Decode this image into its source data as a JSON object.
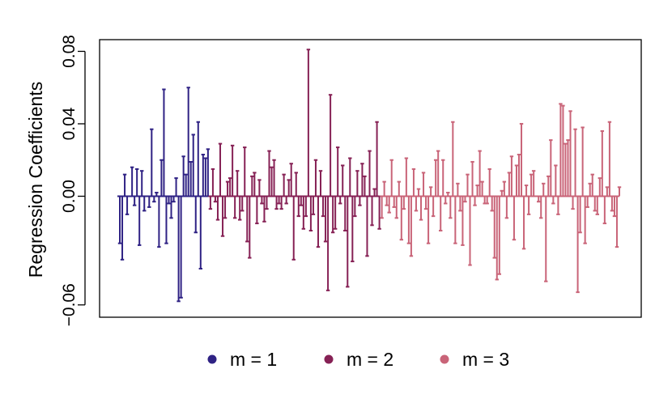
{
  "chart_data": {
    "type": "bar",
    "style": "lollipop-spikes",
    "title": "",
    "xlabel": "",
    "ylabel": "Regression Coefficients",
    "ylim": [
      -0.062,
      0.088
    ],
    "yticks": [
      -0.06,
      0.0,
      0.04,
      0.08
    ],
    "ytick_labels": [
      "−0.06",
      "0.00",
      "0.04",
      "0.08"
    ],
    "grid": false,
    "legend_position": "bottom",
    "legend": [
      {
        "label": "m = 1",
        "color": "#2F2284"
      },
      {
        "label": "m = 2",
        "color": "#862155"
      },
      {
        "label": "m = 3",
        "color": "#C96478"
      }
    ],
    "series": [
      {
        "name": "m = 1",
        "color": "#2F2284",
        "values": [
          -0.026,
          -0.035,
          0.012,
          -0.01,
          0.0,
          0.016,
          -0.005,
          0.015,
          -0.027,
          0.014,
          -0.008,
          0.0,
          -0.006,
          0.037,
          -0.003,
          0.002,
          -0.028,
          0.02,
          0.059,
          -0.026,
          -0.004,
          -0.012,
          -0.003,
          0.01,
          -0.058,
          -0.056,
          0.022,
          0.012,
          0.06,
          0.019,
          0.034,
          -0.02,
          0.041,
          -0.04,
          0.023,
          0.021,
          0.026
        ]
      },
      {
        "name": "m = 2",
        "color": "#862155",
        "values": [
          -0.007,
          0.015,
          -0.003,
          -0.013,
          0.029,
          -0.022,
          -0.012,
          0.008,
          0.01,
          0.028,
          -0.012,
          0.014,
          -0.013,
          -0.008,
          0.027,
          -0.025,
          -0.034,
          0.011,
          0.013,
          -0.015,
          0.009,
          -0.004,
          -0.014,
          -0.007,
          0.025,
          0.016,
          0.02,
          -0.007,
          -0.004,
          -0.007,
          0.012,
          -0.004,
          0.009,
          0.018,
          -0.035,
          0.013,
          -0.011,
          -0.005,
          -0.018,
          -0.011,
          0.081,
          -0.019,
          -0.01,
          0.02,
          -0.028,
          0.014,
          -0.011,
          -0.025,
          -0.052,
          0.056,
          -0.02,
          -0.018,
          0.027,
          -0.004,
          0.017,
          -0.019,
          -0.05,
          0.021,
          -0.036,
          -0.011,
          0.014,
          -0.005,
          0.018,
          0.011,
          -0.033,
          0.025,
          -0.016,
          0.004,
          0.041,
          -0.018
        ]
      },
      {
        "name": "m = 3",
        "color": "#C96478",
        "values": [
          -0.012,
          0.008,
          -0.005,
          -0.009,
          0.02,
          -0.006,
          -0.012,
          0.008,
          -0.024,
          -0.007,
          0.021,
          -0.026,
          -0.033,
          0.015,
          -0.008,
          0.004,
          -0.013,
          0.013,
          -0.007,
          -0.026,
          0.005,
          -0.011,
          0.02,
          0.025,
          -0.019,
          0.02,
          -0.004,
          0.002,
          -0.012,
          0.041,
          -0.026,
          0.007,
          -0.008,
          -0.027,
          -0.003,
          0.012,
          -0.038,
          0.019,
          -0.005,
          0.006,
          0.025,
          0.008,
          -0.004,
          -0.004,
          0.015,
          -0.008,
          -0.034,
          -0.046,
          -0.043,
          0.003,
          0.008,
          -0.012,
          0.013,
          0.022,
          -0.024,
          0.017,
          0.023,
          0.04,
          -0.029,
          0.006,
          -0.01,
          0.012,
          0.014,
          0.0,
          -0.003,
          -0.012,
          0.007,
          -0.047,
          0.011,
          0.031,
          -0.004,
          0.017,
          -0.01,
          0.051,
          0.05,
          0.029,
          0.031,
          0.047,
          -0.007,
          0.037,
          -0.053,
          -0.02,
          0.038,
          -0.026,
          -0.006,
          0.007,
          0.012,
          -0.008,
          -0.01,
          0.01,
          0.036,
          -0.015,
          0.005,
          0.041,
          -0.008,
          -0.011,
          -0.028,
          0.005
        ]
      }
    ]
  }
}
